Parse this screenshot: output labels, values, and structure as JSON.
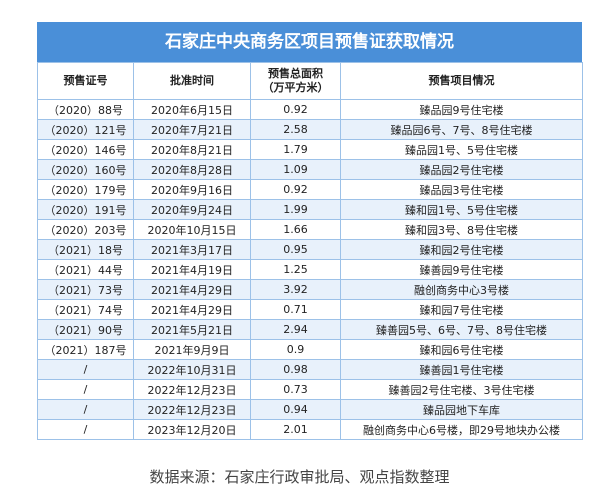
{
  "title": "石家庄中央商务区项目预售证获取情况",
  "table": {
    "header": [
      "预售证号",
      "批准时间",
      "预售总面积\n（万平方米）",
      "预售项目情况"
    ],
    "rows": [
      [
        "（2020）88号",
        "2020年6月15日",
        "0.92",
        "臻品园9号住宅楼"
      ],
      [
        "（2020）121号",
        "2020年7月21日",
        "2.58",
        "臻品园6号、7号、8号住宅楼"
      ],
      [
        "（2020）146号",
        "2020年8月21日",
        "1.79",
        "臻品园1号、5号住宅楼"
      ],
      [
        "（2020）160号",
        "2020年8月28日",
        "1.09",
        "臻品园2号住宅楼"
      ],
      [
        "（2020）179号",
        "2020年9月16日",
        "0.92",
        "臻品园3号住宅楼"
      ],
      [
        "（2020）191号",
        "2020年9月24日",
        "1.99",
        "臻和园1号、5号住宅楼"
      ],
      [
        "（2020）203号",
        "2020年10月15日",
        "1.66",
        "臻和园3号、8号住宅楼"
      ],
      [
        "（2021）18号",
        "2021年3月17日",
        "0.95",
        "臻和园2号住宅楼"
      ],
      [
        "（2021）44号",
        "2021年4月19日",
        "1.25",
        "臻善园9号住宅楼"
      ],
      [
        "（2021）73号",
        "2021年4月29日",
        "3.92",
        "融创商务中心3号楼"
      ],
      [
        "（2021）74号",
        "2021年4月29日",
        "0.71",
        "臻和园7号住宅楼"
      ],
      [
        "（2021）90号",
        "2021年5月21日",
        "2.94",
        "臻善园5号、6号、7号、8号住宅楼"
      ],
      [
        "（2021）187号",
        "2021年9月9日",
        "0.9",
        "臻和园6号住宅楼"
      ],
      [
        "/",
        "2022年10月31日",
        "0.98",
        "臻善园1号住宅楼"
      ],
      [
        "/",
        "2022年12月23日",
        "0.73",
        "臻善园2号住宅楼、3号住宅楼"
      ],
      [
        "/",
        "2022年12月23日",
        "0.94",
        "臻品园地下车库"
      ],
      [
        "/",
        "2023年12月20日",
        "2.01",
        "融创商务中心6号楼，即29号地块办公楼"
      ]
    ]
  },
  "source": "数据来源：石家庄行政审批局、观点指数整理"
}
